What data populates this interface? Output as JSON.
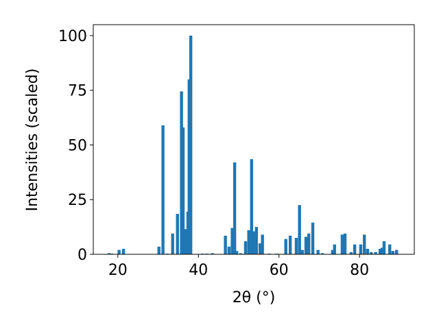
{
  "chart_data": {
    "type": "bar",
    "x_label": "2θ (°)",
    "y_label": "Intensities (scaled)",
    "color": "#1f77b4",
    "x": [
      17.8,
      18.5,
      20.3,
      21.4,
      30.2,
      31.2,
      32.3,
      33.6,
      34.8,
      35.8,
      36.2,
      36.7,
      37.4,
      37.7,
      38.1,
      41.0,
      42.1,
      43.5,
      46.7,
      47.6,
      48.4,
      49.0,
      49.5,
      50.5,
      51.7,
      52.5,
      53.2,
      53.7,
      54.4,
      55.3,
      55.9,
      57.6,
      59.4,
      61.7,
      62.8,
      64.3,
      65.1,
      65.8,
      66.7,
      67.4,
      68.4,
      69.7,
      70.8,
      73.3,
      73.8,
      75.7,
      76.4,
      77.9,
      78.8,
      80.3,
      81.2,
      82.0,
      82.9,
      84.0,
      85.1,
      85.6,
      86.1,
      87.5,
      88.3,
      89.2
    ],
    "values": [
      0.5,
      0.3,
      2,
      2.5,
      3.5,
      59,
      0.3,
      9.5,
      18.5,
      74.5,
      58,
      11.5,
      19.5,
      80,
      100,
      0.3,
      0.3,
      0.5,
      8.5,
      3.5,
      12,
      42,
      1.5,
      0.5,
      6,
      11,
      43.5,
      10.5,
      12.5,
      5,
      9,
      0.3,
      0.3,
      7,
      8.5,
      7.5,
      22.5,
      2,
      8,
      9.5,
      14.5,
      2,
      0.5,
      2,
      4.5,
      9,
      9.5,
      1,
      4.5,
      4.5,
      9,
      2.5,
      1,
      1,
      2.5,
      3,
      6,
      4.5,
      1.5,
      2
    ],
    "xlim": [
      13.9,
      93.6
    ],
    "ylim": [
      0,
      105
    ],
    "xticks": [
      20,
      40,
      60,
      80
    ],
    "yticks": [
      0,
      25,
      50,
      75,
      100
    ]
  }
}
